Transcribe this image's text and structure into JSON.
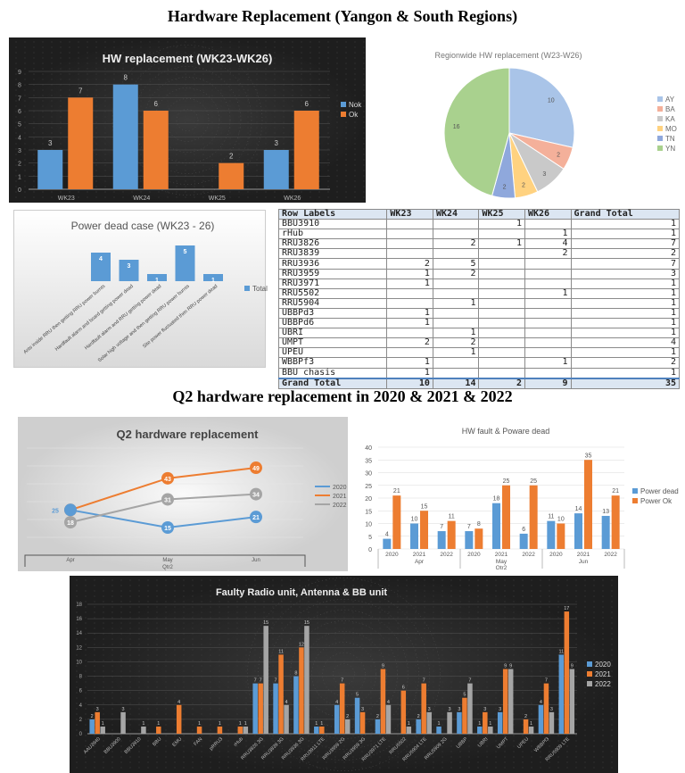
{
  "headings": {
    "top": "Hardware Replacement (Yangon & South Regions)",
    "middle": "Q2 hardware replacement in 2020 & 2021 & 2022"
  },
  "colors": {
    "blue": "#5b9bd5",
    "orange": "#ed7d31",
    "gray": "#a5a5a5",
    "dark_bg": "#2b2b2b"
  },
  "chart_data": [
    {
      "id": "hw_wk",
      "type": "bar",
      "title": "HW replacement (WK23-WK26)",
      "categories": [
        "WK23",
        "WK24",
        "WK25",
        "WK26"
      ],
      "ylim": [
        0,
        9
      ],
      "yticks": [
        0,
        1,
        2,
        3,
        4,
        5,
        6,
        7,
        8,
        9
      ],
      "legend": "right",
      "grid": true,
      "series": [
        {
          "name": "Nok",
          "values": [
            3,
            8,
            null,
            3
          ]
        },
        {
          "name": "Ok",
          "values": [
            7,
            6,
            2,
            6
          ]
        }
      ]
    },
    {
      "id": "pie",
      "type": "pie",
      "title": "Regionwide HW replacement (W23-W26)",
      "legend": "right",
      "labels": [
        "AY",
        "BA",
        "KA",
        "MO",
        "TN",
        "YN"
      ],
      "values": [
        10,
        2,
        3,
        2,
        2,
        16
      ],
      "colors": [
        "#a9c4e8",
        "#f4b09a",
        "#c9c9c9",
        "#ffd280",
        "#8fa8dc",
        "#a9d18e"
      ]
    },
    {
      "id": "power",
      "type": "bar",
      "title": "Power dead case (WK23 - 26)",
      "legend": "right",
      "grid": false,
      "categories": [
        "Ants inside RRU then getting RRU power burnts",
        "Hardfault alarm and board getting power dead",
        "Hardfault alarm and RRU getting power dead",
        "Solar high voltage and then getting RRU power burnts",
        "Site power fluctuated then RRU power dead"
      ],
      "series": [
        {
          "name": "Total",
          "values": [
            4,
            3,
            1,
            5,
            1
          ]
        }
      ]
    },
    {
      "id": "table",
      "type": "table",
      "headers": [
        "Row Labels",
        "WK23",
        "WK24",
        "WK25",
        "WK26",
        "Grand Total"
      ],
      "rows": [
        [
          "BBU3910",
          "",
          "",
          "1",
          "",
          "1"
        ],
        [
          "rHub",
          "",
          "",
          "",
          "1",
          "1"
        ],
        [
          "RRU3826",
          "",
          "2",
          "1",
          "4",
          "7"
        ],
        [
          "RRU3839",
          "",
          "",
          "",
          "2",
          "2"
        ],
        [
          "RRU3936",
          "2",
          "5",
          "",
          "",
          "7"
        ],
        [
          "RRU3959",
          "1",
          "2",
          "",
          "",
          "3"
        ],
        [
          "RRU3971",
          "1",
          "",
          "",
          "",
          "1"
        ],
        [
          "RRU5502",
          "",
          "",
          "",
          "1",
          "1"
        ],
        [
          "RRU5904",
          "",
          "1",
          "",
          "",
          "1"
        ],
        [
          "UBBPd3",
          "1",
          "",
          "",
          "",
          "1"
        ],
        [
          "UBBPd6",
          "1",
          "",
          "",
          "",
          "1"
        ],
        [
          "UBRI",
          "",
          "1",
          "",
          "",
          "1"
        ],
        [
          "UMPT",
          "2",
          "2",
          "",
          "",
          "4"
        ],
        [
          "UPEU",
          "",
          "1",
          "",
          "",
          "1"
        ],
        [
          "WBBPf3",
          "1",
          "",
          "",
          "1",
          "2"
        ],
        [
          "BBU chasis",
          "1",
          "",
          "",
          "",
          "1"
        ]
      ],
      "total": [
        "Grand Total",
        "10",
        "14",
        "2",
        "9",
        "35"
      ]
    },
    {
      "id": "q2",
      "type": "line",
      "title": "Q2 hardware replacement",
      "categories": [
        "Apr",
        "May",
        "Jun"
      ],
      "group_label": "Qtr2",
      "legend": "right",
      "series": [
        {
          "name": "2020",
          "values": [
            25,
            15,
            21
          ]
        },
        {
          "name": "2021",
          "values": [
            25,
            43,
            49
          ]
        },
        {
          "name": "2022",
          "values": [
            18,
            31,
            34
          ]
        }
      ]
    },
    {
      "id": "fault",
      "type": "bar",
      "title": "HW fault & Poware dead",
      "ylim": [
        0,
        40
      ],
      "yticks": [
        0,
        5,
        10,
        15,
        20,
        25,
        30,
        35,
        40
      ],
      "legend": "right",
      "grid": true,
      "groups": [
        "Apr",
        "May",
        "Jun"
      ],
      "group_label": "Qtr2",
      "categories": [
        "2020",
        "2021",
        "2022",
        "2020",
        "2021",
        "2022",
        "2020",
        "2021",
        "2022"
      ],
      "series": [
        {
          "name": "Power dead",
          "values": [
            4,
            10,
            7,
            7,
            18,
            6,
            11,
            14,
            13
          ]
        },
        {
          "name": "Power Ok",
          "values": [
            21,
            15,
            11,
            8,
            25,
            25,
            10,
            35,
            21
          ]
        }
      ]
    },
    {
      "id": "radio",
      "type": "bar",
      "title": "Faulty Radio unit, Antenna & BB unit",
      "ylim": [
        0,
        18
      ],
      "yticks": [
        0,
        2,
        4,
        6,
        8,
        10,
        12,
        14,
        16,
        18
      ],
      "legend": "right",
      "grid": true,
      "categories": [
        "AAU3940",
        "BBU3900",
        "BBU3910",
        "BBU",
        "EMU",
        "FAN",
        "pRRU3",
        "rHub",
        "RRU3826 3G",
        "RRU3839 3G",
        "RRU3936 3G",
        "RRU3911 LTE",
        "RRU3959 2G",
        "RRU3959 3G",
        "RRU3971 LTE",
        "RRU5502",
        "RRU5904 LTE",
        "RRU5909 2G",
        "UBBP",
        "UBRI",
        "UMPT",
        "UPEU",
        "WBBPf3",
        "RRU5909 LTE"
      ],
      "series": [
        {
          "name": "2020",
          "values": [
            2,
            null,
            null,
            null,
            null,
            null,
            null,
            null,
            7,
            7,
            8,
            1,
            4,
            5,
            2,
            null,
            2,
            1,
            3,
            1,
            3,
            null,
            4,
            11
          ]
        },
        {
          "name": "2021",
          "values": [
            3,
            null,
            null,
            1,
            4,
            1,
            1,
            1,
            7,
            11,
            12,
            1,
            7,
            3,
            9,
            6,
            7,
            null,
            5,
            3,
            9,
            2,
            7,
            17
          ]
        },
        {
          "name": "2022",
          "values": [
            1,
            3,
            1,
            null,
            null,
            null,
            null,
            1,
            15,
            4,
            15,
            null,
            2,
            null,
            4,
            1,
            3,
            3,
            7,
            1,
            9,
            1,
            3,
            9
          ]
        }
      ]
    }
  ]
}
